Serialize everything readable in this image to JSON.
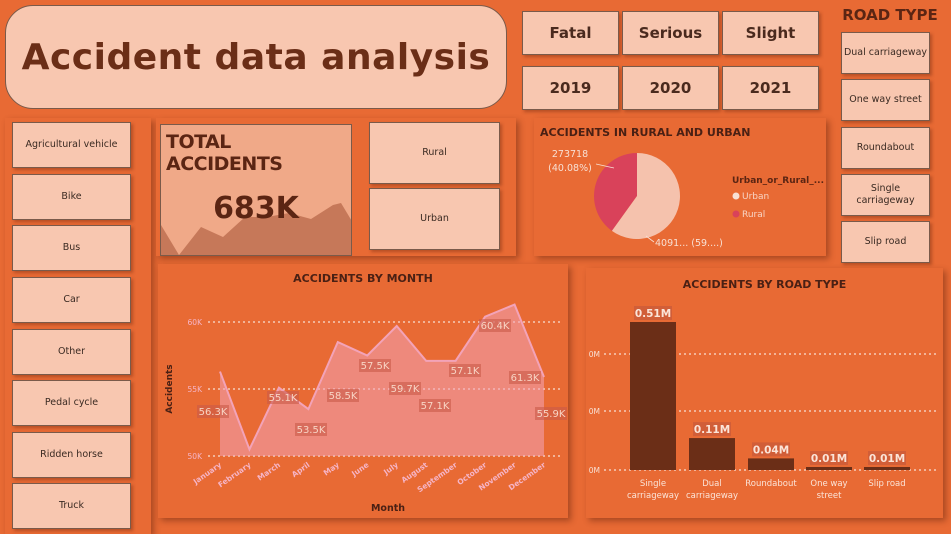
{
  "title": "Accident data analysis",
  "severity_buttons": [
    "Fatal",
    "Serious",
    "Slight"
  ],
  "year_buttons": [
    "2019",
    "2020",
    "2021"
  ],
  "road_type_slicer": {
    "title": "ROAD TYPE",
    "items": [
      "Dual carriageway",
      "One way street",
      "Roundabout",
      "Single carriageway",
      "Slip road"
    ]
  },
  "vehicle_slicer": {
    "items": [
      "Agricultural vehicle",
      "Bike",
      "Bus",
      "Car",
      "Other",
      "Pedal cycle",
      "Ridden horse",
      "Truck"
    ]
  },
  "total_accidents": {
    "label": "TOTAL ACCIDENTS",
    "value": "683K"
  },
  "area_buttons": [
    "Rural",
    "Urban"
  ],
  "colors": {
    "background": "#e86a34",
    "card": "#f8c7b0",
    "urban": "#f5c2ad",
    "rural": "#d9425a",
    "bar": "#6b2e17",
    "area_line": "#f3a3b8"
  },
  "chart_data": [
    {
      "type": "pie",
      "title": "ACCIDENTS IN RURAL AND URBAN",
      "legend_title": "Urban_or_Rural_...",
      "legend_position": "right",
      "slices": [
        {
          "name": "Urban",
          "value": 409154,
          "label": "4091... (59....)"
        },
        {
          "name": "Rural",
          "value": 273718,
          "label": "273718 (40.08%)"
        }
      ]
    },
    {
      "type": "area",
      "title": "ACCIDENTS BY MONTH",
      "xlabel": "Month",
      "ylabel": "Accidents",
      "categories": [
        "January",
        "February",
        "March",
        "April",
        "May",
        "June",
        "July",
        "August",
        "September",
        "October",
        "November",
        "December"
      ],
      "values": [
        56300,
        50500,
        55100,
        53500,
        58500,
        57500,
        59700,
        57100,
        57100,
        60400,
        61300,
        55900
      ],
      "data_labels": [
        "56.3K",
        "",
        "55.1K",
        "53.5K",
        "58.5K",
        "57.5K",
        "59.7K",
        "57.1K",
        "57.1K",
        "60.4K",
        "61.3K",
        "55.9K"
      ],
      "y_ticks": [
        "50K",
        "55K",
        "60K"
      ],
      "ylim": [
        50000,
        60000
      ],
      "grid": true
    },
    {
      "type": "bar",
      "title": "ACCIDENTS BY ROAD TYPE",
      "categories": [
        "Single carriageway",
        "Dual carriageway",
        "Roundabout",
        "One way street",
        "Slip road"
      ],
      "values": [
        0.51,
        0.11,
        0.04,
        0.01,
        0.01
      ],
      "data_labels": [
        "0.51M",
        "0.11M",
        "0.04M",
        "0.01M",
        "0.01M"
      ],
      "y_ticks": [
        "0M",
        "0M",
        "0M"
      ],
      "grid": true
    }
  ]
}
